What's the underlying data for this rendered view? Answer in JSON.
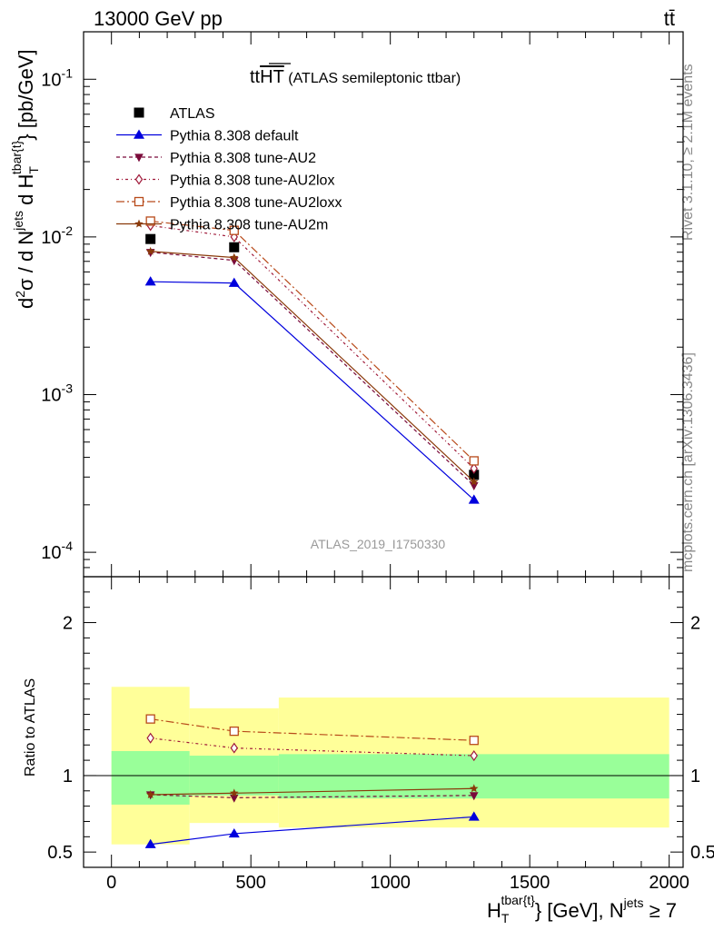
{
  "header": {
    "left": "13000 GeV pp",
    "right": "tt̄"
  },
  "side": {
    "rivet": "Rivet 3.1.10, ≥ 2.1M events",
    "mcplots": "mcplots.cern.ch [arXiv:1306.3436]"
  },
  "chart_data": [
    {
      "type": "line",
      "title_main": "tt",
      "title_over": "HT",
      "title_sub": "(ATLAS semileptonic ttbar)",
      "watermark": "ATLAS_2019_I1750330",
      "ylabel": "d²σ / d N^jets d H_T^tbar{t} [pb/GeV]",
      "yscale": "log",
      "ylim": [
        7e-05,
        0.2
      ],
      "xlim": [
        -100,
        2050
      ],
      "ytick_labels": [
        "10^-1",
        "10^-2",
        "10^-3",
        "10^-4"
      ],
      "legend_position": "top-left",
      "bin_edges": [
        0,
        280,
        600,
        2000
      ],
      "x": [
        140,
        440,
        1300
      ],
      "series": [
        {
          "name": "ATLAS",
          "color": "#000000",
          "marker": "filled-square",
          "values": [
            0.0097,
            0.0086,
            0.00031
          ]
        },
        {
          "name": "Pythia 8.308 default",
          "color": "#0000dd",
          "marker": "filled-triangle-up",
          "values": [
            0.0052,
            0.0051,
            0.000215
          ]
        },
        {
          "name": "Pythia 8.308 tune-AU2",
          "color": "#7a0a3a",
          "marker": "filled-triangle-down",
          "values": [
            0.008,
            0.0071,
            0.000265
          ]
        },
        {
          "name": "Pythia 8.308 tune-AU2lox",
          "color": "#a01a3a",
          "marker": "open-diamond",
          "values": [
            0.0118,
            0.01,
            0.00034
          ]
        },
        {
          "name": "Pythia 8.308 tune-AU2loxx",
          "color": "#b84a1a",
          "marker": "open-square",
          "values": [
            0.0126,
            0.011,
            0.00038
          ]
        },
        {
          "name": "Pythia 8.308 tune-AU2m",
          "color": "#8a3a0a",
          "marker": "star",
          "values": [
            0.0081,
            0.0074,
            0.00028
          ]
        }
      ]
    },
    {
      "type": "line",
      "ylabel": "Ratio to ATLAS",
      "xlabel": "H_T^tbar{t} [GeV], N^jets ≥ 7",
      "ylim": [
        0.4,
        2.3
      ],
      "xlim": [
        -100,
        2050
      ],
      "yticks": [
        0.5,
        1,
        2
      ],
      "ytick_labels": [
        "0.5",
        "1",
        "2"
      ],
      "xticks": [
        0,
        500,
        1000,
        1500,
        2000
      ],
      "xtick_labels": [
        "0",
        "500",
        "1000",
        "1500",
        "2000"
      ],
      "bands": {
        "inner_color": "#99ff99",
        "outer_color": "#ffff99",
        "inner": [
          [
            0.81,
            1.16
          ],
          [
            0.87,
            1.13
          ],
          [
            0.85,
            1.14
          ]
        ],
        "outer": [
          [
            0.55,
            1.58
          ],
          [
            0.69,
            1.44
          ],
          [
            0.66,
            1.51
          ]
        ]
      },
      "x": [
        140,
        440,
        1300
      ],
      "series": [
        {
          "name": "Pythia 8.308 default",
          "values": [
            0.55,
            0.62,
            0.73
          ]
        },
        {
          "name": "Pythia 8.308 tune-AU2",
          "values": [
            0.875,
            0.855,
            0.87
          ]
        },
        {
          "name": "Pythia 8.308 tune-AU2lox",
          "values": [
            1.245,
            1.18,
            1.13
          ]
        },
        {
          "name": "Pythia 8.308 tune-AU2loxx",
          "values": [
            1.37,
            1.29,
            1.23
          ]
        },
        {
          "name": "Pythia 8.308 tune-AU2m",
          "values": [
            0.875,
            0.885,
            0.915
          ]
        }
      ]
    }
  ]
}
